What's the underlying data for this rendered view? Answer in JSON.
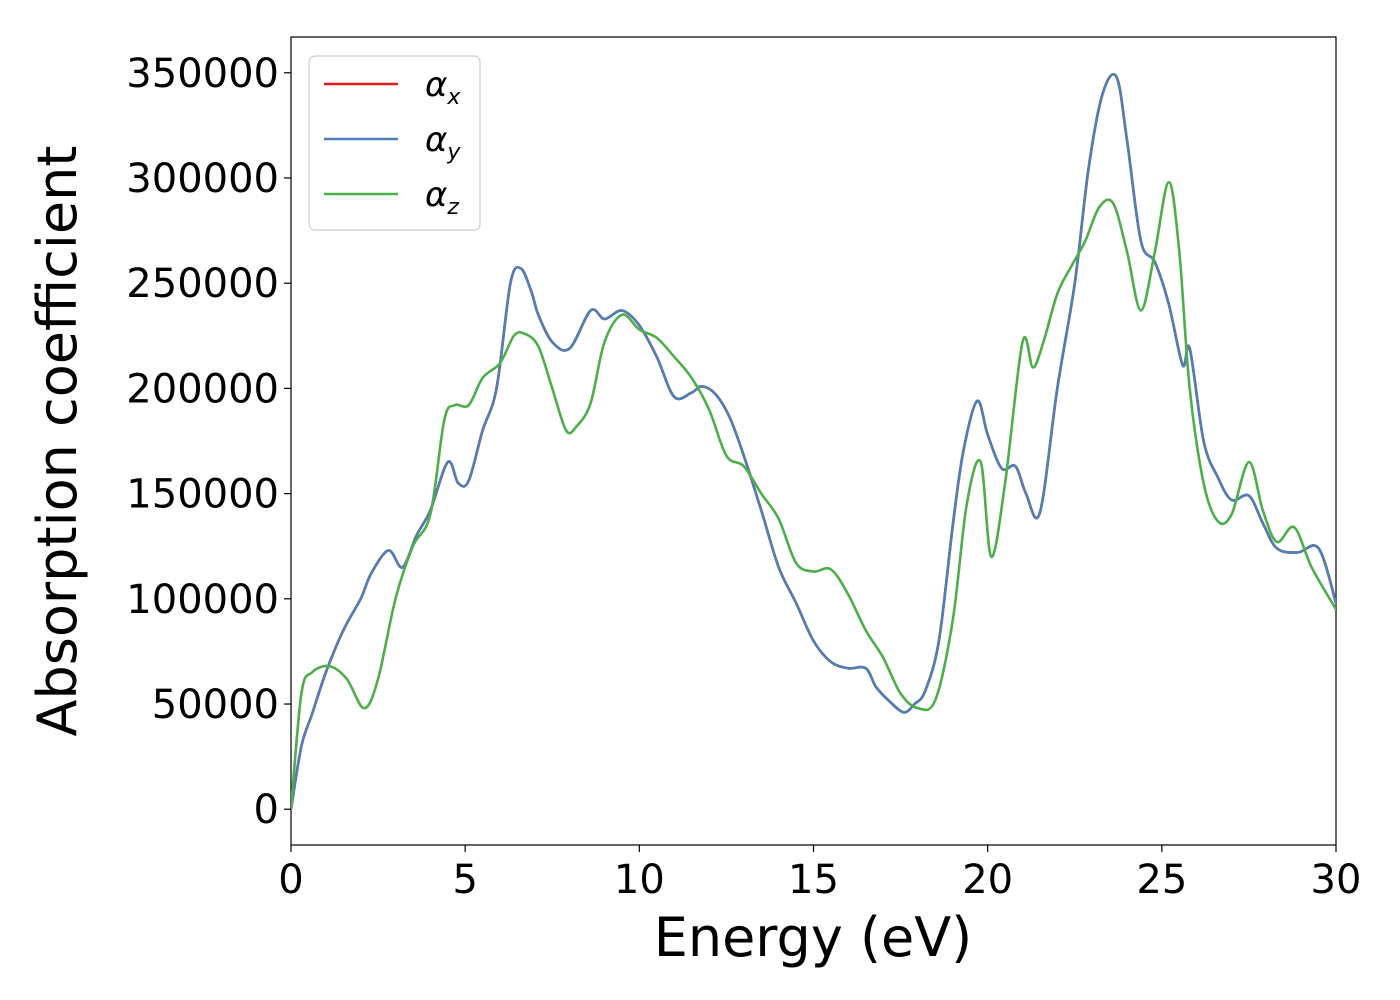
{
  "chart_data": {
    "type": "line",
    "title": "",
    "xlabel": "Energy (eV)",
    "ylabel": "Absorption coefficient",
    "xlim": [
      0,
      30
    ],
    "ylim": [
      -17000,
      367000
    ],
    "xticks": [
      0,
      5,
      10,
      15,
      20,
      25,
      30
    ],
    "yticks": [
      0,
      50000,
      100000,
      150000,
      200000,
      250000,
      300000,
      350000
    ],
    "grid": false,
    "legend_position": "top-left",
    "series": [
      {
        "name": "α_x",
        "legend_symbol": "α",
        "legend_subscript": "x",
        "color": "#e41a1c",
        "x": [
          0,
          0.3,
          0.6,
          1,
          1.5,
          2,
          2.3,
          2.8,
          3.2,
          3.6,
          4,
          4.5,
          4.8,
          5.1,
          5.5,
          5.9,
          6.3,
          6.6,
          6.9,
          7.1,
          7.5,
          8,
          8.6,
          9,
          9.5,
          10,
          10.5,
          11,
          11.5,
          11.8,
          12.2,
          12.6,
          13,
          13.5,
          14,
          14.5,
          15,
          15.5,
          16,
          16.5,
          16.8,
          17.2,
          17.6,
          17.9,
          18.2,
          18.6,
          19,
          19.3,
          19.7,
          20,
          20.4,
          20.8,
          21.1,
          21.5,
          22,
          22.5,
          22.9,
          23.3,
          23.7,
          24,
          24.4,
          24.8,
          25.2,
          25.6,
          25.8,
          26.2,
          26.6,
          27,
          27.5,
          27.9,
          28.3,
          28.9,
          29.5,
          30
        ],
        "values": [
          0,
          30000,
          45000,
          65000,
          85000,
          100000,
          112000,
          123000,
          115000,
          130000,
          142000,
          165000,
          155000,
          156000,
          180000,
          200000,
          250000,
          257000,
          246000,
          235000,
          222000,
          219000,
          237000,
          233000,
          237000,
          230000,
          215000,
          196000,
          198000,
          201000,
          197000,
          186000,
          168000,
          142000,
          115000,
          98000,
          80000,
          70000,
          67000,
          67000,
          58000,
          51000,
          46000,
          50000,
          56000,
          80000,
          135000,
          170000,
          194000,
          178000,
          162000,
          163000,
          150000,
          141000,
          200000,
          250000,
          305000,
          340000,
          348000,
          318000,
          270000,
          260000,
          240000,
          211000,
          219000,
          175000,
          158000,
          147000,
          149000,
          136000,
          124000,
          122000,
          124000,
          98000
        ]
      },
      {
        "name": "α_y",
        "legend_symbol": "α",
        "legend_subscript": "y",
        "color": "#4e7fb5",
        "x": [
          0,
          0.3,
          0.6,
          1,
          1.5,
          2,
          2.3,
          2.8,
          3.2,
          3.6,
          4,
          4.5,
          4.8,
          5.1,
          5.5,
          5.9,
          6.3,
          6.6,
          6.9,
          7.1,
          7.5,
          8,
          8.6,
          9,
          9.5,
          10,
          10.5,
          11,
          11.5,
          11.8,
          12.2,
          12.6,
          13,
          13.5,
          14,
          14.5,
          15,
          15.5,
          16,
          16.5,
          16.8,
          17.2,
          17.6,
          17.9,
          18.2,
          18.6,
          19,
          19.3,
          19.7,
          20,
          20.4,
          20.8,
          21.1,
          21.5,
          22,
          22.5,
          22.9,
          23.3,
          23.7,
          24,
          24.4,
          24.8,
          25.2,
          25.6,
          25.8,
          26.2,
          26.6,
          27,
          27.5,
          27.9,
          28.3,
          28.9,
          29.5,
          30
        ],
        "values": [
          0,
          30000,
          45000,
          65000,
          85000,
          100000,
          112000,
          123000,
          115000,
          130000,
          142000,
          165000,
          155000,
          156000,
          180000,
          200000,
          250000,
          257000,
          246000,
          235000,
          222000,
          219000,
          237000,
          233000,
          237000,
          230000,
          215000,
          196000,
          198000,
          201000,
          197000,
          186000,
          168000,
          142000,
          115000,
          98000,
          80000,
          70000,
          67000,
          67000,
          58000,
          51000,
          46000,
          50000,
          56000,
          80000,
          135000,
          170000,
          194000,
          178000,
          162000,
          163000,
          150000,
          141000,
          200000,
          250000,
          305000,
          340000,
          348000,
          318000,
          270000,
          260000,
          240000,
          211000,
          219000,
          175000,
          158000,
          147000,
          149000,
          136000,
          124000,
          122000,
          124000,
          98000
        ]
      },
      {
        "name": "α_z",
        "legend_symbol": "α",
        "legend_subscript": "z",
        "color": "#4daf4a",
        "x": [
          0,
          0.3,
          0.6,
          1.1,
          1.6,
          2.1,
          2.5,
          3,
          3.5,
          4,
          4.4,
          4.7,
          5.1,
          5.5,
          6,
          6.4,
          6.7,
          7.1,
          7.5,
          7.9,
          8.2,
          8.6,
          9,
          9.5,
          10,
          10.5,
          11,
          11.5,
          12,
          12.5,
          13,
          13.5,
          14,
          14.5,
          15,
          15.5,
          16,
          16.5,
          17,
          17.5,
          18,
          18.5,
          19,
          19.4,
          19.8,
          20.1,
          20.5,
          21,
          21.3,
          21.6,
          22,
          22.4,
          22.8,
          23.2,
          23.6,
          24,
          24.4,
          24.8,
          25.2,
          25.5,
          25.8,
          26.2,
          26.6,
          27,
          27.5,
          27.9,
          28.3,
          28.8,
          29.3,
          30
        ],
        "values": [
          0,
          55000,
          65000,
          68000,
          62000,
          48000,
          62000,
          100000,
          125000,
          140000,
          185000,
          192000,
          192000,
          205000,
          212000,
          225000,
          226000,
          220000,
          200000,
          180000,
          182000,
          193000,
          222000,
          235000,
          228000,
          224000,
          215000,
          205000,
          190000,
          168000,
          163000,
          150000,
          138000,
          117000,
          113000,
          114000,
          102000,
          85000,
          72000,
          55000,
          48000,
          52000,
          90000,
          145000,
          165000,
          120000,
          155000,
          222000,
          210000,
          222000,
          245000,
          258000,
          270000,
          286000,
          288000,
          265000,
          237000,
          265000,
          298000,
          265000,
          200000,
          155000,
          137000,
          140000,
          165000,
          142000,
          127000,
          134000,
          115000,
          95000
        ]
      }
    ]
  }
}
